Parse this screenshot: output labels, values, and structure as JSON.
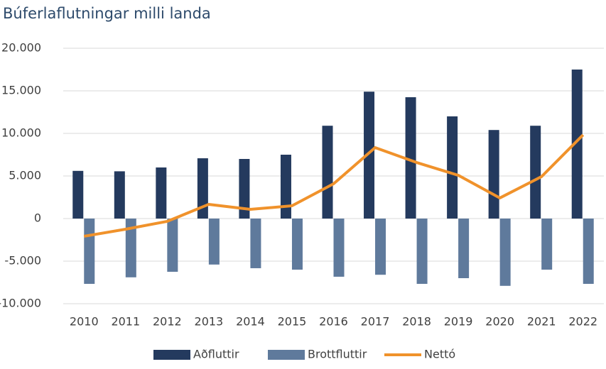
{
  "chart_data": {
    "type": "bar-line",
    "title": "Búferlaflutningar milli landa",
    "categories": [
      "2010",
      "2011",
      "2012",
      "2013",
      "2014",
      "2015",
      "2016",
      "2017",
      "2018",
      "2019",
      "2020",
      "2021",
      "2022"
    ],
    "series": [
      {
        "name": "Aðfluttir",
        "type": "bar",
        "color": "#243a5e",
        "values": [
          5600,
          5550,
          6000,
          7080,
          7000,
          7500,
          10900,
          14900,
          14250,
          12000,
          10400,
          10900,
          17500
        ]
      },
      {
        "name": "Brottfluttir",
        "type": "bar",
        "color": "#5f7a9c",
        "values": [
          -7670,
          -6900,
          -6250,
          -5400,
          -5830,
          -6000,
          -6830,
          -6600,
          -7670,
          -7000,
          -7900,
          -6000,
          -7670
        ]
      },
      {
        "name": "Nettó",
        "type": "line",
        "color": "#f0922b",
        "values": [
          -2080,
          -1250,
          -330,
          1670,
          1080,
          1500,
          4080,
          8330,
          6580,
          5080,
          2420,
          4920,
          9830
        ]
      }
    ],
    "ylim": [
      -10000,
      20000
    ],
    "yticks": [
      {
        "value": -10000,
        "label": "-10.000"
      },
      {
        "value": -5000,
        "label": "-5.000"
      },
      0,
      {
        "value": 5000,
        "label": "5.000"
      },
      {
        "value": 10000,
        "label": "10.000"
      },
      {
        "value": 15000,
        "label": "15.000"
      },
      {
        "value": 20000,
        "label": "20.000"
      }
    ],
    "grid": true,
    "legend": "bottom"
  }
}
